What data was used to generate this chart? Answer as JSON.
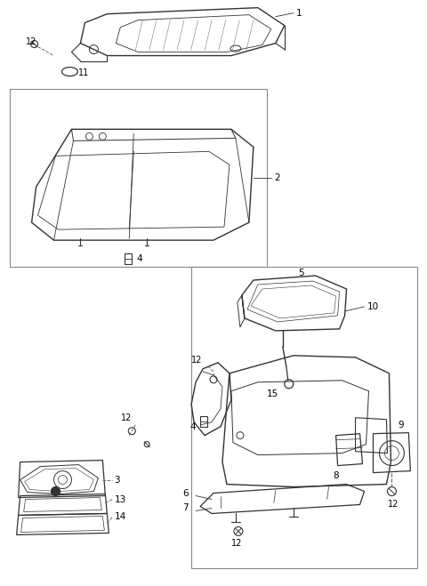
{
  "bg_color": "#ffffff",
  "line_color": "#333333",
  "label_color": "#000000",
  "fig_width": 4.8,
  "fig_height": 6.59,
  "dpi": 100
}
